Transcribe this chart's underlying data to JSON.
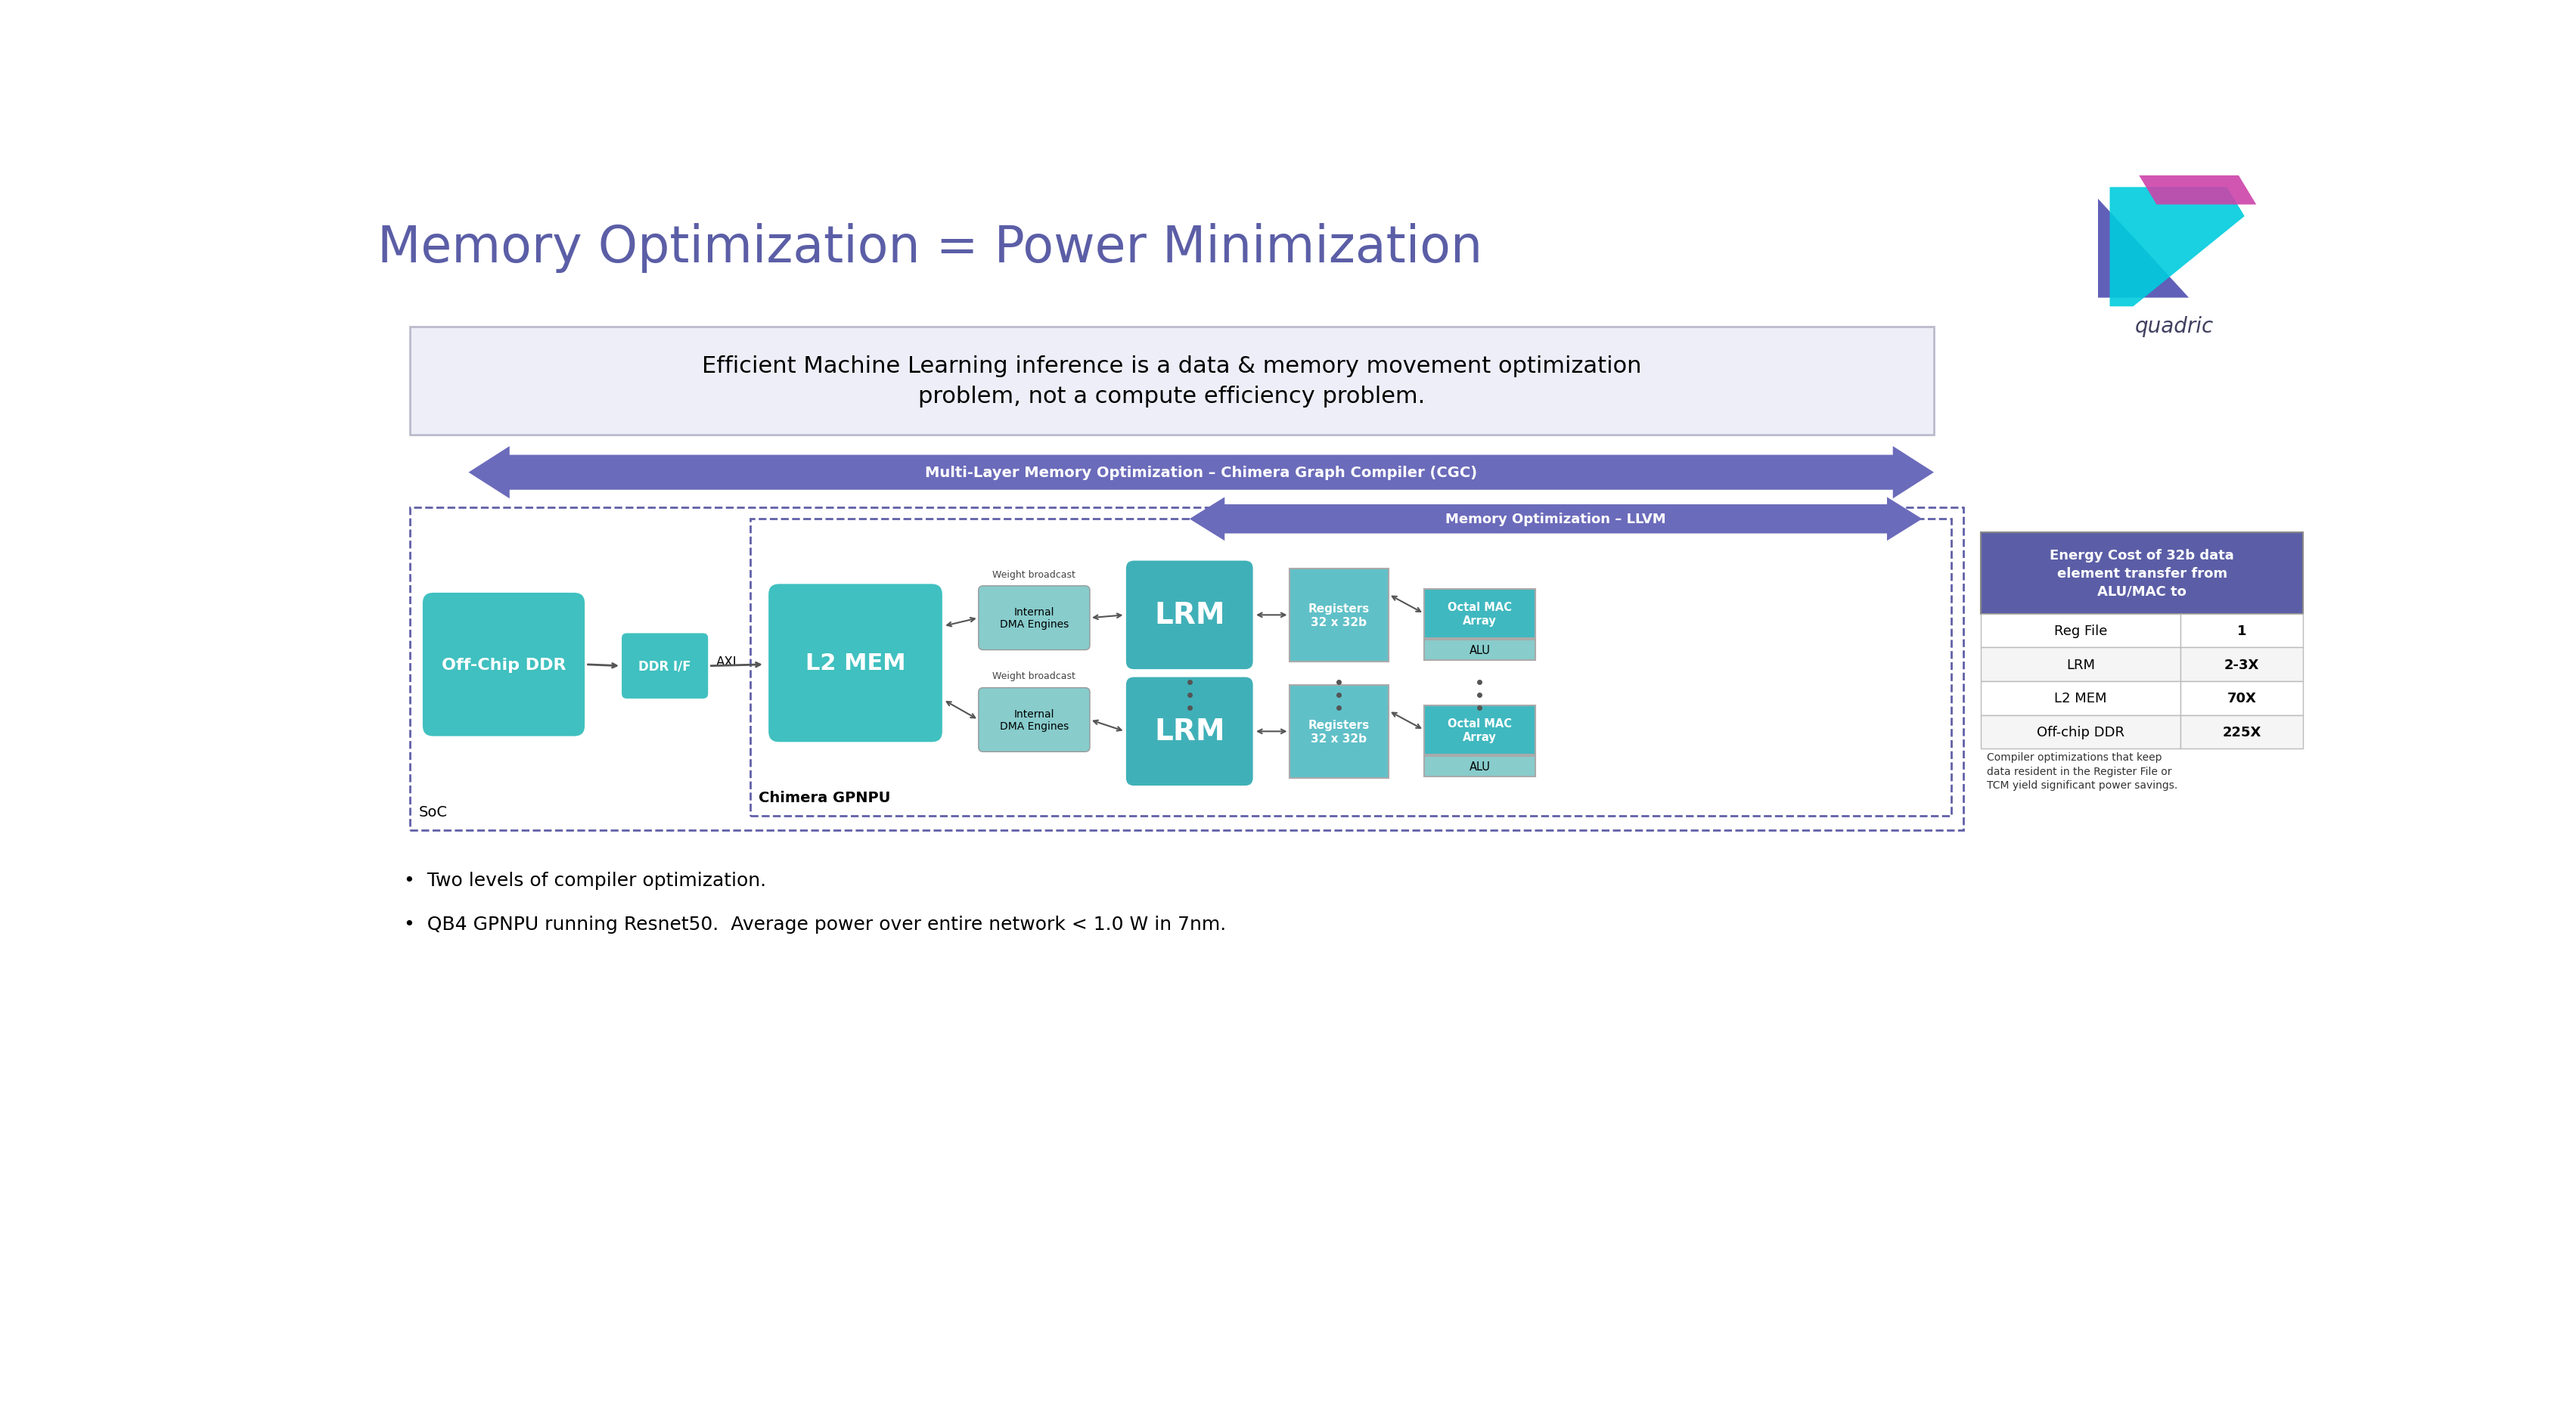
{
  "title": "Memory Optimization = Power Minimization",
  "title_color": "#5b5ea6",
  "bg_color": "#ffffff",
  "subtitle_box_text": "Efficient Machine Learning inference is a data & memory movement optimization\nproblem, not a compute efficiency problem.",
  "subtitle_box_bg": "#eeeef8",
  "subtitle_box_border": "#aaaacc",
  "arrow_label_1": "Multi-Layer Memory Optimization – Chimera Graph Compiler (CGC)",
  "arrow_label_2": "Memory Optimization – LLVM",
  "arrow_color": "#6b6bbb",
  "box_offchip_label": "Off-Chip DDR",
  "box_l2_label": "L2 MEM",
  "box_lrm1_label": "LRM",
  "box_lrm2_label": "LRM",
  "box_ddr_if_label": "DDR I/F",
  "box_axi_label": "AXI",
  "box_dma1_label": "Internal\nDMA Engines",
  "box_dma2_label": "Internal\nDMA Engines",
  "box_reg1_label": "Registers\n32 x 32b",
  "box_reg2_label": "Registers\n32 x 32b",
  "box_mac1_label": "Octal MAC\nArray",
  "box_alu1_label": "ALU",
  "box_mac2_label": "Octal MAC\nArray",
  "box_alu2_label": "ALU",
  "weight_broadcast_label": "Weight broadcast",
  "weight_broadcast_label2": "Weight broadcast",
  "soc_label": "SoC",
  "chimera_label": "Chimera GPNPU",
  "box_color_offchip": "#40c0c0",
  "box_color_l2": "#40c0c0",
  "box_color_lrm": "#40b0b8",
  "box_color_dma": "#88cccc",
  "box_color_reg": "#60c0c8",
  "box_color_mac": "#40b8c0",
  "box_color_alu": "#88cccc",
  "dashed_border_color": "#6060a8",
  "table_header_bg": "#5b5ea6",
  "table_header_color": "#ffffff",
  "table_header_text": "Energy Cost of 32b data\nelement transfer from\nALU/MAC to",
  "table_rows": [
    [
      "Reg File",
      "1"
    ],
    [
      "LRM",
      "2-3X"
    ],
    [
      "L2 MEM",
      "70X"
    ],
    [
      "Off-chip DDR",
      "225X"
    ]
  ],
  "table_row_bg": [
    "#ffffff",
    "#f5f5f5",
    "#ffffff",
    "#f5f5f5"
  ],
  "table_footnote": "Compiler optimizations that keep\ndata resident in the Register File or\nTCM yield significant power savings.",
  "bullet1": "Two levels of compiler optimization.",
  "bullet2": "QB4 GPNPU running Resnet50.  Average power over entire network < 1.0 W in 7nm."
}
